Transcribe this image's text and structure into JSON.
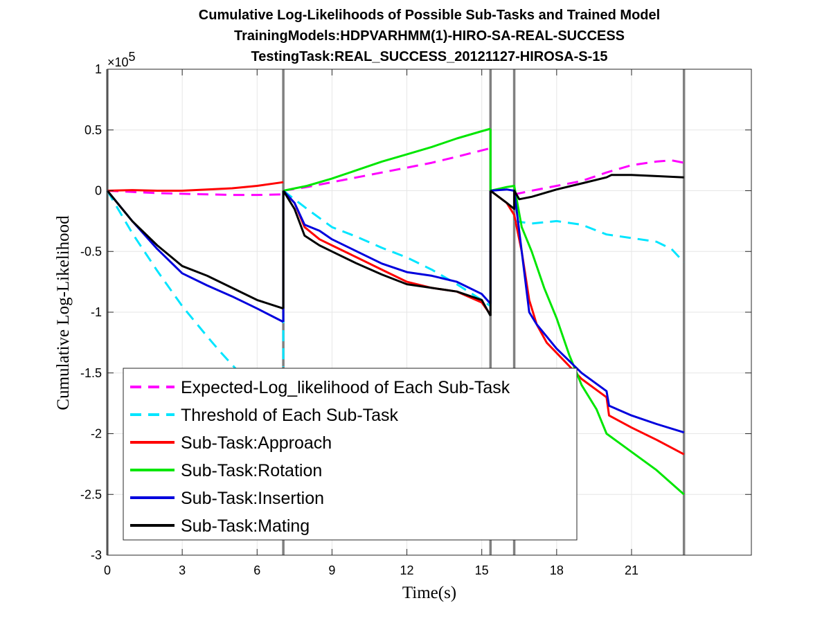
{
  "chart_data": {
    "type": "line",
    "title_lines": [
      "Cumulative Log-Likelihoods of Possible Sub-Tasks and Trained Model",
      "TrainingModels:HDPVARHMM(1)-HIRO-SA-REAL-SUCCESS",
      "TestingTask:REAL_SUCCESS_20121127-HIROSA-S-15"
    ],
    "xlabel": "Time(s)",
    "ylabel": "Cumulative Log-Likelihood",
    "y_multiplier_base": "×10",
    "y_multiplier_exp": "5",
    "xlim": [
      0,
      25.8
    ],
    "ylim": [
      -3,
      1
    ],
    "x_ticks": [
      0,
      3,
      6,
      9,
      12,
      15,
      18,
      21
    ],
    "x_tick_labels": [
      "0",
      "3",
      "6",
      "9",
      "12",
      "15",
      "18",
      "21"
    ],
    "y_ticks": [
      1,
      0.5,
      0,
      -0.5,
      -1,
      -1.5,
      -2,
      -2.5,
      -3
    ],
    "y_tick_labels": [
      "1",
      "0.5",
      "0",
      "-0.5",
      "-1",
      "-1.5",
      "-2",
      "-2.5",
      "-3"
    ],
    "grid": true,
    "vertical_markers": [
      0,
      7.05,
      15.35,
      16.3,
      23.1
    ],
    "legend_position": "bottom-left",
    "series": [
      {
        "name": "Expected-Log_likelihood of Each Sub-Task",
        "color": "#ff00ff",
        "dashed": true,
        "segments": [
          [
            [
              0,
              0
            ],
            [
              1,
              -0.01
            ],
            [
              2,
              -0.02
            ],
            [
              3,
              -0.025
            ],
            [
              4,
              -0.03
            ],
            [
              5,
              -0.035
            ],
            [
              6,
              -0.035
            ],
            [
              7.05,
              -0.03
            ]
          ],
          [
            [
              7.05,
              0
            ],
            [
              8,
              0.03
            ],
            [
              9,
              0.07
            ],
            [
              10,
              0.11
            ],
            [
              11,
              0.15
            ],
            [
              12,
              0.19
            ],
            [
              13,
              0.23
            ],
            [
              14,
              0.28
            ],
            [
              15.35,
              0.35
            ]
          ],
          [
            [
              16.3,
              -0.03
            ],
            [
              17,
              0.0
            ],
            [
              18,
              0.04
            ],
            [
              19,
              0.08
            ],
            [
              20,
              0.15
            ],
            [
              21,
              0.21
            ],
            [
              22,
              0.24
            ],
            [
              22.6,
              0.25
            ],
            [
              23.1,
              0.23
            ]
          ]
        ]
      },
      {
        "name": "Threshold of Each Sub-Task",
        "color": "#00e5ff",
        "dashed": true,
        "segments": [
          [
            [
              0,
              0
            ],
            [
              1,
              -0.35
            ],
            [
              2,
              -0.66
            ],
            [
              3,
              -0.95
            ],
            [
              4,
              -1.2
            ],
            [
              4.5,
              -1.32
            ],
            [
              5.3,
              -1.5
            ]
          ],
          [
            [
              7.05,
              -1.0
            ],
            [
              7.05,
              -1.45
            ]
          ],
          [
            [
              7.05,
              0
            ],
            [
              8,
              -0.15
            ],
            [
              9,
              -0.3
            ],
            [
              10,
              -0.38
            ],
            [
              11,
              -0.47
            ],
            [
              12,
              -0.55
            ],
            [
              13,
              -0.65
            ],
            [
              14,
              -0.77
            ],
            [
              15,
              -0.9
            ],
            [
              15.35,
              -0.95
            ]
          ],
          [
            [
              16.3,
              -0.25
            ],
            [
              17,
              -0.27
            ],
            [
              18,
              -0.25
            ],
            [
              19,
              -0.28
            ],
            [
              20,
              -0.36
            ],
            [
              21,
              -0.39
            ],
            [
              22,
              -0.42
            ],
            [
              22.6,
              -0.48
            ],
            [
              23.1,
              -0.59
            ]
          ]
        ]
      },
      {
        "name": "Sub-Task:Approach",
        "color": "#ff0000",
        "dashed": false,
        "segments": [
          [
            [
              0,
              0
            ],
            [
              1,
              0.005
            ],
            [
              2,
              0.0
            ],
            [
              3,
              0.0
            ],
            [
              4,
              0.01
            ],
            [
              5,
              0.02
            ],
            [
              6,
              0.04
            ],
            [
              7.05,
              0.07
            ]
          ],
          [
            [
              7.05,
              0
            ],
            [
              7.5,
              -0.1
            ],
            [
              7.9,
              -0.3
            ],
            [
              8.5,
              -0.4
            ],
            [
              9,
              -0.45
            ],
            [
              10,
              -0.55
            ],
            [
              11,
              -0.65
            ],
            [
              12,
              -0.75
            ],
            [
              13,
              -0.8
            ],
            [
              14,
              -0.83
            ],
            [
              15,
              -0.92
            ],
            [
              15.35,
              -1.02
            ]
          ],
          [
            [
              15.35,
              0
            ],
            [
              16,
              -0.1
            ],
            [
              16.3,
              -0.2
            ],
            [
              16.6,
              -0.5
            ],
            [
              16.9,
              -0.9
            ],
            [
              17.2,
              -1.1
            ],
            [
              17.6,
              -1.25
            ],
            [
              18.3,
              -1.4
            ],
            [
              19,
              -1.55
            ],
            [
              20,
              -1.7
            ],
            [
              20.1,
              -1.85
            ],
            [
              21,
              -1.95
            ],
            [
              22,
              -2.05
            ],
            [
              23.1,
              -2.17
            ]
          ]
        ]
      },
      {
        "name": "Sub-Task:Rotation",
        "color": "#00e600",
        "dashed": false,
        "segments": [
          [
            [
              7.05,
              0
            ],
            [
              8,
              0.04
            ],
            [
              9,
              0.1
            ],
            [
              10,
              0.17
            ],
            [
              11,
              0.24
            ],
            [
              12,
              0.3
            ],
            [
              13,
              0.36
            ],
            [
              14,
              0.43
            ],
            [
              15,
              0.49
            ],
            [
              15.35,
              0.51
            ]
          ],
          [
            [
              15.35,
              0.51
            ],
            [
              15.35,
              0.0
            ]
          ],
          [
            [
              15.35,
              0
            ],
            [
              16,
              0.03
            ],
            [
              16.3,
              0.04
            ],
            [
              16.6,
              -0.3
            ],
            [
              17,
              -0.5
            ],
            [
              17.5,
              -0.8
            ],
            [
              18,
              -1.05
            ],
            [
              18.5,
              -1.35
            ],
            [
              19,
              -1.6
            ],
            [
              19.6,
              -1.8
            ],
            [
              20,
              -2.0
            ],
            [
              21,
              -2.15
            ],
            [
              22,
              -2.3
            ],
            [
              23.1,
              -2.5
            ]
          ]
        ]
      },
      {
        "name": "Sub-Task:Insertion",
        "color": "#0000dd",
        "dashed": false,
        "segments": [
          [
            [
              0,
              0
            ],
            [
              1,
              -0.25
            ],
            [
              2,
              -0.48
            ],
            [
              3,
              -0.68
            ],
            [
              4,
              -0.78
            ],
            [
              5,
              -0.87
            ],
            [
              6,
              -0.97
            ],
            [
              7.05,
              -1.08
            ]
          ],
          [
            [
              7.05,
              -1.08
            ],
            [
              7.05,
              0
            ]
          ],
          [
            [
              7.05,
              0
            ],
            [
              7.5,
              -0.1
            ],
            [
              7.9,
              -0.28
            ],
            [
              8.5,
              -0.33
            ],
            [
              9,
              -0.4
            ],
            [
              10,
              -0.5
            ],
            [
              11,
              -0.6
            ],
            [
              12,
              -0.67
            ],
            [
              13,
              -0.7
            ],
            [
              14,
              -0.75
            ],
            [
              15,
              -0.85
            ],
            [
              15.35,
              -0.93
            ]
          ],
          [
            [
              15.35,
              -0.93
            ],
            [
              15.35,
              0
            ]
          ],
          [
            [
              15.35,
              0
            ],
            [
              16,
              0.01
            ],
            [
              16.3,
              0.0
            ],
            [
              16.6,
              -0.5
            ],
            [
              16.9,
              -1.0
            ],
            [
              17.2,
              -1.1
            ],
            [
              18,
              -1.3
            ],
            [
              19,
              -1.5
            ],
            [
              20,
              -1.65
            ],
            [
              20.1,
              -1.77
            ],
            [
              21,
              -1.85
            ],
            [
              22,
              -1.92
            ],
            [
              23.1,
              -1.99
            ]
          ]
        ]
      },
      {
        "name": "Sub-Task:Mating",
        "color": "#000000",
        "dashed": false,
        "segments": [
          [
            [
              0,
              0
            ],
            [
              1,
              -0.25
            ],
            [
              2,
              -0.45
            ],
            [
              3,
              -0.62
            ],
            [
              4,
              -0.7
            ],
            [
              5,
              -0.8
            ],
            [
              6,
              -0.9
            ],
            [
              7.05,
              -0.97
            ]
          ],
          [
            [
              7.05,
              -0.97
            ],
            [
              7.05,
              0
            ]
          ],
          [
            [
              7.05,
              0
            ],
            [
              7.5,
              -0.15
            ],
            [
              7.9,
              -0.37
            ],
            [
              8.5,
              -0.45
            ],
            [
              9,
              -0.5
            ],
            [
              10,
              -0.6
            ],
            [
              11,
              -0.69
            ],
            [
              12,
              -0.77
            ],
            [
              13,
              -0.8
            ],
            [
              14,
              -0.83
            ],
            [
              15,
              -0.9
            ],
            [
              15.35,
              -1.03
            ]
          ],
          [
            [
              15.35,
              -1.03
            ],
            [
              15.35,
              0
            ]
          ],
          [
            [
              15.35,
              0
            ],
            [
              16,
              -0.1
            ],
            [
              16.3,
              -0.15
            ],
            [
              16.3,
              0.0
            ],
            [
              16.5,
              -0.07
            ],
            [
              17,
              -0.05
            ],
            [
              18,
              0.01
            ],
            [
              19,
              0.06
            ],
            [
              20,
              0.11
            ],
            [
              20.2,
              0.13
            ],
            [
              21,
              0.13
            ],
            [
              22,
              0.12
            ],
            [
              23.1,
              0.11
            ]
          ]
        ]
      }
    ]
  }
}
